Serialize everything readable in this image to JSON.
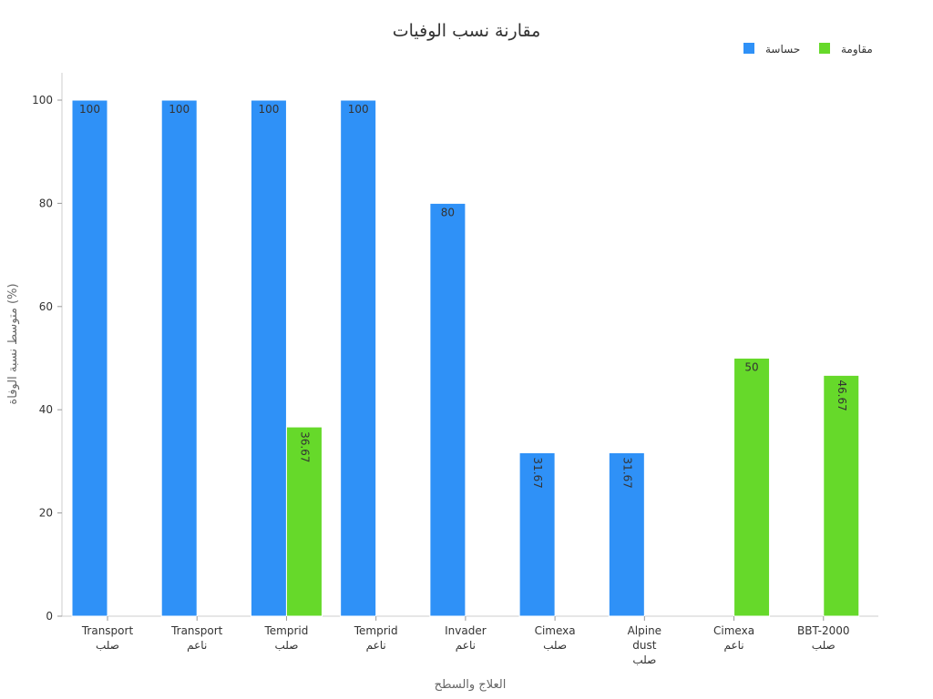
{
  "chart_data": {
    "type": "bar",
    "title": "مقارنة نسب الوفيات",
    "xlabel": "العلاج والسطح",
    "ylabel": "متوسط نسبة الوفاة (%)",
    "ylim": [
      0,
      105
    ],
    "yticks": [
      0,
      20,
      40,
      60,
      80,
      100
    ],
    "grid": false,
    "legend_position": "top-right",
    "categories": [
      [
        "Transport",
        "صلب"
      ],
      [
        "Transport",
        "ناعم"
      ],
      [
        "Temprid",
        "صلب"
      ],
      [
        "Temprid",
        "ناعم"
      ],
      [
        "Invader",
        "ناعم"
      ],
      [
        "Cimexa",
        "صلب"
      ],
      [
        "Alpine",
        "dust",
        "صلب"
      ],
      [
        "Cimexa",
        "ناعم"
      ],
      [
        "BBT-2000",
        "صلب"
      ]
    ],
    "series": [
      {
        "name": "حساسة",
        "color": "#2F91F7",
        "values": [
          100,
          100,
          100,
          100,
          80,
          31.67,
          31.67,
          null,
          null
        ],
        "labels": [
          "100",
          "100",
          "100",
          "100",
          "80",
          "31.67",
          "31.67",
          null,
          null
        ]
      },
      {
        "name": "مقاومة",
        "color": "#66D92A",
        "values": [
          null,
          null,
          36.67,
          null,
          null,
          null,
          null,
          50,
          46.67
        ],
        "labels": [
          null,
          null,
          "36.67",
          null,
          null,
          null,
          null,
          "50",
          "46.67"
        ]
      }
    ]
  }
}
